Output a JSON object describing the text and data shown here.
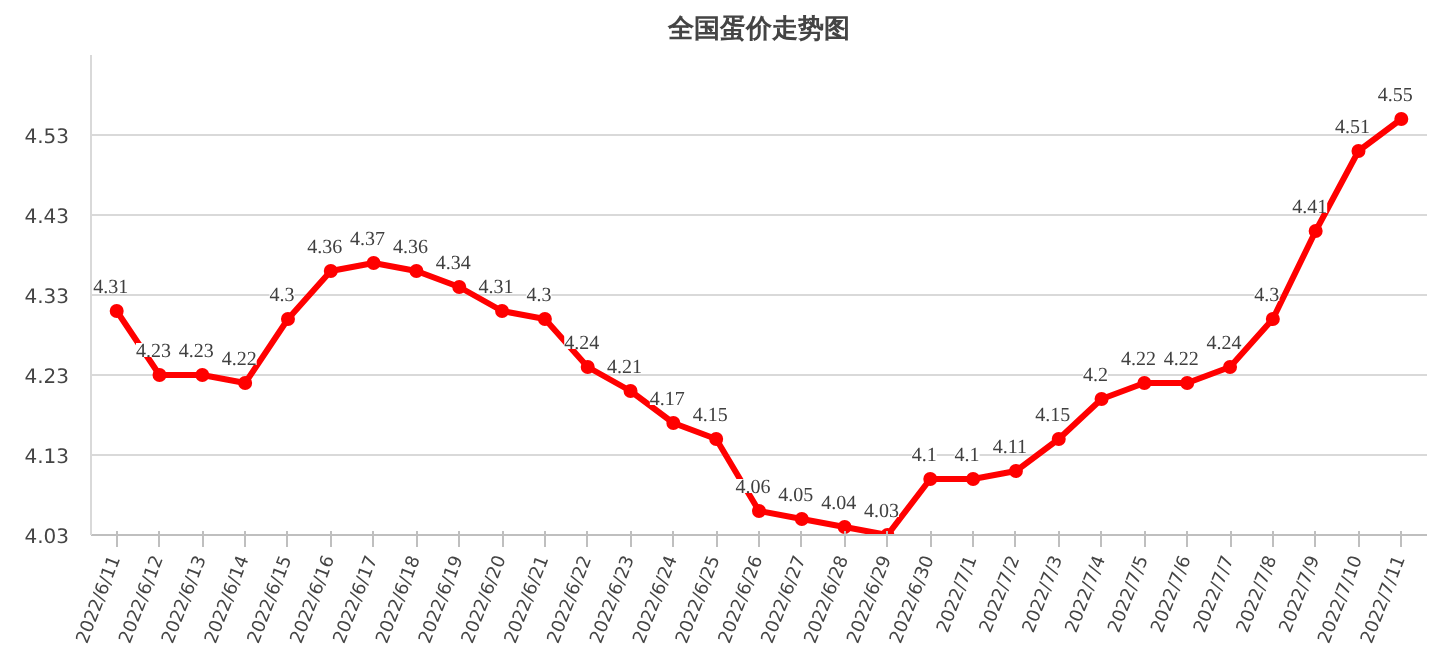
{
  "chart_data": {
    "type": "line",
    "title": "全国蛋价走势图",
    "categories": [
      "2022/6/11",
      "2022/6/12",
      "2022/6/13",
      "2022/6/14",
      "2022/6/15",
      "2022/6/16",
      "2022/6/17",
      "2022/6/18",
      "2022/6/19",
      "2022/6/20",
      "2022/6/21",
      "2022/6/22",
      "2022/6/23",
      "2022/6/24",
      "2022/6/25",
      "2022/6/26",
      "2022/6/27",
      "2022/6/28",
      "2022/6/29",
      "2022/6/30",
      "2022/7/1",
      "2022/7/2",
      "2022/7/3",
      "2022/7/4",
      "2022/7/5",
      "2022/7/6",
      "2022/7/7",
      "2022/7/8",
      "2022/7/9",
      "2022/7/10",
      "2022/7/11"
    ],
    "series": [
      {
        "color": "#ff0000",
        "values": [
          4.31,
          4.23,
          4.23,
          4.22,
          4.3,
          4.36,
          4.37,
          4.36,
          4.34,
          4.31,
          4.3,
          4.24,
          4.21,
          4.17,
          4.15,
          4.06,
          4.05,
          4.04,
          4.03,
          4.1,
          4.1,
          4.11,
          4.15,
          4.2,
          4.22,
          4.22,
          4.24,
          4.3,
          4.41,
          4.51,
          4.55
        ]
      }
    ],
    "ylim": [
      4.03,
      4.63
    ],
    "yticks": [
      4.03,
      4.13,
      4.23,
      4.33,
      4.43,
      4.53
    ],
    "grid": "y",
    "marker": "circle",
    "line_style": "solid",
    "data_labels": true
  }
}
